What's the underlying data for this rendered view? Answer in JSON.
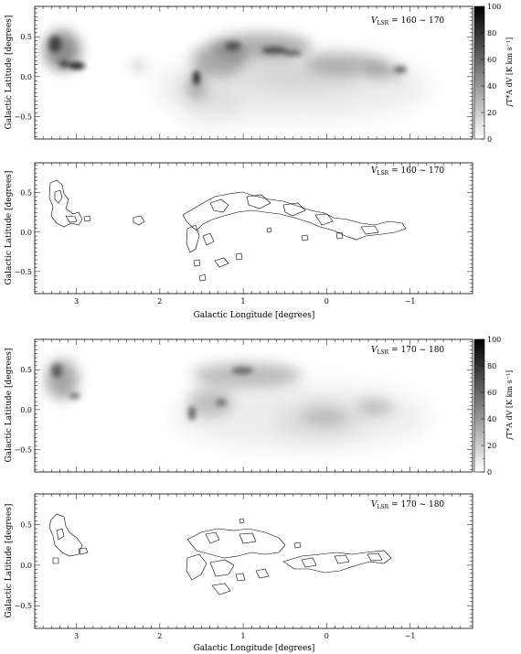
{
  "figure": {
    "x_axis_label": "Galactic Longitude [degrees]",
    "y_axis_label": "Galactic Latitude [degrees]",
    "x_ticks": [
      {
        "value": 3,
        "label": "3"
      },
      {
        "value": 2,
        "label": "2"
      },
      {
        "value": 1,
        "label": "1"
      },
      {
        "value": 0,
        "label": "0"
      },
      {
        "value": -1,
        "label": "−1"
      }
    ],
    "y_ticks": [
      {
        "value": 0.5,
        "label": "0.5"
      },
      {
        "value": 0.0,
        "label": "0.0"
      },
      {
        "value": -0.5,
        "label": "−0.5"
      }
    ],
    "colorbar": {
      "label": "∫T*A dV [K km s⁻¹]",
      "ticks": [
        {
          "value": 100,
          "label": "100"
        },
        {
          "value": 80,
          "label": "80"
        },
        {
          "value": 60,
          "label": "60"
        },
        {
          "value": 40,
          "label": "40"
        },
        {
          "value": 20,
          "label": "20"
        },
        {
          "value": 0,
          "label": "0"
        }
      ],
      "range": [
        0,
        100
      ]
    },
    "panels": [
      {
        "id": "a",
        "kind": "grayscale",
        "vlsr_label": "V",
        "vlsr_sub": "LSR",
        "vlsr_range": "= 160 ~ 170"
      },
      {
        "id": "b",
        "kind": "contour",
        "vlsr_label": "V",
        "vlsr_sub": "LSR",
        "vlsr_range": "= 160 ~ 170"
      },
      {
        "id": "c",
        "kind": "grayscale",
        "vlsr_label": "V",
        "vlsr_sub": "LSR",
        "vlsr_range": "= 170 ~ 180"
      },
      {
        "id": "d",
        "kind": "contour",
        "vlsr_label": "V",
        "vlsr_sub": "LSR",
        "vlsr_range": "= 170 ~ 180"
      }
    ]
  },
  "chart_data": [
    {
      "type": "heatmap",
      "title": "V_LSR = 160 ~ 170",
      "xlabel": "",
      "ylabel": "Galactic Latitude [degrees]",
      "xlim": [
        3.5,
        -1.75
      ],
      "ylim": [
        -0.78,
        0.88
      ],
      "colorbar_range": [
        0,
        100
      ],
      "emission_regions": [
        {
          "l": 3.3,
          "b": 0.35,
          "peak": 60
        },
        {
          "l": 3.1,
          "b": 0.16,
          "peak": 95
        },
        {
          "l": 2.35,
          "b": 0.15,
          "peak": 20
        },
        {
          "l": 1.6,
          "b": 0.05,
          "peak": 80
        },
        {
          "l": 1.0,
          "b": 0.32,
          "peak": 70
        },
        {
          "l": 0.3,
          "b": 0.3,
          "peak": 60
        },
        {
          "l": 0.0,
          "b": 0.05,
          "peak": 30
        },
        {
          "l": -0.75,
          "b": 0.1,
          "peak": 50
        }
      ]
    },
    {
      "type": "contour",
      "title": "V_LSR = 160 ~ 170",
      "xlabel": "Galactic Longitude [degrees]",
      "ylabel": "Galactic Latitude [degrees]",
      "xlim": [
        3.5,
        -1.75
      ],
      "ylim": [
        -0.78,
        0.88
      ]
    },
    {
      "type": "heatmap",
      "title": "V_LSR = 170 ~ 180",
      "xlabel": "",
      "ylabel": "Galactic Latitude [degrees]",
      "xlim": [
        3.5,
        -1.75
      ],
      "ylim": [
        -0.78,
        0.88
      ],
      "colorbar_range": [
        0,
        100
      ],
      "emission_regions": [
        {
          "l": 3.25,
          "b": 0.35,
          "peak": 50
        },
        {
          "l": 3.0,
          "b": 0.18,
          "peak": 70
        },
        {
          "l": 1.55,
          "b": 0.05,
          "peak": 70
        },
        {
          "l": 1.0,
          "b": 0.35,
          "peak": 65
        },
        {
          "l": 0.15,
          "b": 0.0,
          "peak": 25
        },
        {
          "l": -0.55,
          "b": 0.05,
          "peak": 35
        }
      ]
    },
    {
      "type": "contour",
      "title": "V_LSR = 170 ~ 180",
      "xlabel": "Galactic Longitude [degrees]",
      "ylabel": "Galactic Latitude [degrees]",
      "xlim": [
        3.5,
        -1.75
      ],
      "ylim": [
        -0.78,
        0.88
      ]
    }
  ]
}
